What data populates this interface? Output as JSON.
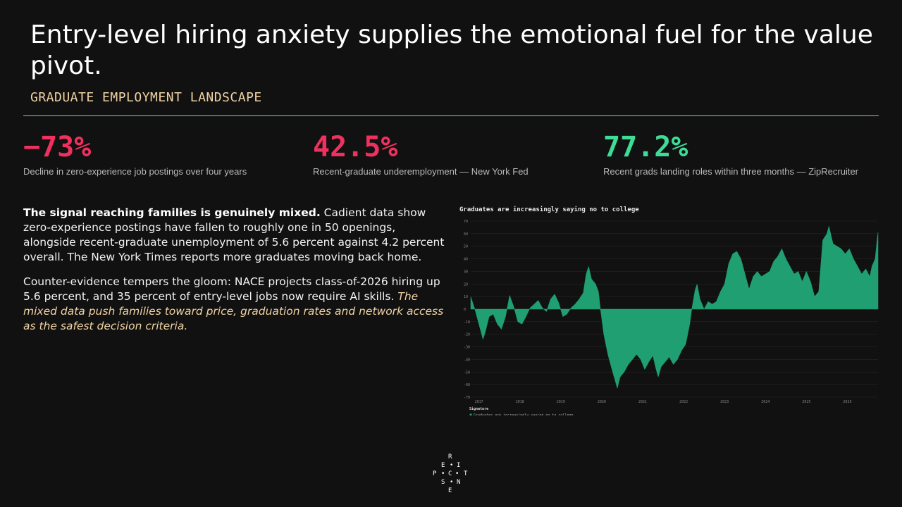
{
  "slide": {
    "title": "Entry-level hiring anxiety supplies the emotional fuel for the value pivot.",
    "section_label": "GRADUATE EMPLOYMENT LANDSCAPE"
  },
  "stats": [
    {
      "value": "−73%",
      "label": "Decline in zero-experience job postings over four years",
      "color": "#f0305e"
    },
    {
      "value": "42.5%",
      "label": "Recent-graduate underemployment — New York Fed",
      "color": "#f0305e"
    },
    {
      "value": "77.2%",
      "label": "Recent grads landing roles within three months — ZipRecruiter",
      "color": "#3ddc97"
    }
  ],
  "body": {
    "p1_lead": "The signal reaching families is genuinely mixed.",
    "p1_rest": " Cadient data show zero-experience postings have fallen to roughly one in 50 openings, alongside recent-graduate unemployment of 5.6 percent against 4.2 percent overall. The New York Times reports more graduates moving back home.",
    "p2_rest": "Counter-evidence tempers the gloom: NACE projects class-of-2026 hiring up 5.6 percent, and 35 percent of entry-level jobs now require AI skills. ",
    "p2_accent": "The mixed data push families toward price, graduation rates and network access as the safest decision criteria."
  },
  "logo": {
    "letters": [
      "R",
      "E",
      "I",
      "P",
      "C",
      "T",
      "S",
      "N",
      "E"
    ]
  },
  "chart_data": {
    "type": "area",
    "title": "Graduates are increasingly saying no to college",
    "xlabel": "",
    "ylabel": "",
    "ylim": [
      -70,
      70
    ],
    "yticks": [
      70,
      60,
      50,
      40,
      30,
      20,
      10,
      0,
      -10,
      -20,
      -30,
      -40,
      -50,
      -60,
      -70
    ],
    "xlim": [
      2016.8,
      2026.75
    ],
    "xticks": [
      "2017",
      "2018",
      "2019",
      "2020",
      "2021",
      "2022",
      "2023",
      "2024",
      "2025",
      "2026"
    ],
    "grid": true,
    "legend_title": "Signature",
    "legend_position": "bottom-left",
    "series": [
      {
        "name": "Graduates are increasingly saying no to college",
        "color": "#1f9f72",
        "points": [
          [
            2016.8,
            10
          ],
          [
            2016.9,
            0
          ],
          [
            2017.0,
            -12
          ],
          [
            2017.1,
            -24
          ],
          [
            2017.15,
            -19
          ],
          [
            2017.25,
            -6
          ],
          [
            2017.35,
            -4
          ],
          [
            2017.45,
            -12
          ],
          [
            2017.55,
            -16
          ],
          [
            2017.65,
            -6
          ],
          [
            2017.75,
            11
          ],
          [
            2017.85,
            2
          ],
          [
            2017.95,
            -10
          ],
          [
            2018.05,
            -12
          ],
          [
            2018.15,
            -6
          ],
          [
            2018.25,
            1
          ],
          [
            2018.35,
            4
          ],
          [
            2018.45,
            7
          ],
          [
            2018.55,
            1
          ],
          [
            2018.65,
            -2
          ],
          [
            2018.75,
            8
          ],
          [
            2018.85,
            12
          ],
          [
            2018.95,
            5
          ],
          [
            2019.05,
            -6
          ],
          [
            2019.15,
            -4
          ],
          [
            2019.25,
            1
          ],
          [
            2019.35,
            4
          ],
          [
            2019.45,
            8
          ],
          [
            2019.55,
            13
          ],
          [
            2019.62,
            28
          ],
          [
            2019.68,
            34
          ],
          [
            2019.75,
            24
          ],
          [
            2019.85,
            20
          ],
          [
            2019.92,
            14
          ],
          [
            2019.97,
            0
          ],
          [
            2020.05,
            -20
          ],
          [
            2020.15,
            -36
          ],
          [
            2020.25,
            -48
          ],
          [
            2020.32,
            -56
          ],
          [
            2020.38,
            -63
          ],
          [
            2020.45,
            -54
          ],
          [
            2020.55,
            -50
          ],
          [
            2020.65,
            -44
          ],
          [
            2020.75,
            -40
          ],
          [
            2020.85,
            -36
          ],
          [
            2020.95,
            -40
          ],
          [
            2021.05,
            -48
          ],
          [
            2021.15,
            -42
          ],
          [
            2021.25,
            -37
          ],
          [
            2021.32,
            -47
          ],
          [
            2021.38,
            -54
          ],
          [
            2021.45,
            -46
          ],
          [
            2021.55,
            -42
          ],
          [
            2021.65,
            -38
          ],
          [
            2021.75,
            -44
          ],
          [
            2021.85,
            -40
          ],
          [
            2021.95,
            -33
          ],
          [
            2022.05,
            -28
          ],
          [
            2022.15,
            -12
          ],
          [
            2022.2,
            0
          ],
          [
            2022.28,
            15
          ],
          [
            2022.33,
            20
          ],
          [
            2022.4,
            8
          ],
          [
            2022.5,
            0
          ],
          [
            2022.6,
            6
          ],
          [
            2022.7,
            4
          ],
          [
            2022.8,
            6
          ],
          [
            2022.9,
            14
          ],
          [
            2023.0,
            20
          ],
          [
            2023.1,
            36
          ],
          [
            2023.2,
            44
          ],
          [
            2023.3,
            46
          ],
          [
            2023.4,
            40
          ],
          [
            2023.5,
            28
          ],
          [
            2023.6,
            16
          ],
          [
            2023.7,
            26
          ],
          [
            2023.8,
            30
          ],
          [
            2023.9,
            26
          ],
          [
            2024.0,
            28
          ],
          [
            2024.1,
            30
          ],
          [
            2024.2,
            38
          ],
          [
            2024.3,
            42
          ],
          [
            2024.4,
            48
          ],
          [
            2024.5,
            40
          ],
          [
            2024.6,
            34
          ],
          [
            2024.7,
            28
          ],
          [
            2024.8,
            30
          ],
          [
            2024.9,
            22
          ],
          [
            2025.0,
            30
          ],
          [
            2025.1,
            22
          ],
          [
            2025.2,
            10
          ],
          [
            2025.3,
            14
          ],
          [
            2025.4,
            55
          ],
          [
            2025.5,
            60
          ],
          [
            2025.55,
            66
          ],
          [
            2025.65,
            52
          ],
          [
            2025.75,
            50
          ],
          [
            2025.85,
            48
          ],
          [
            2025.95,
            44
          ],
          [
            2026.05,
            48
          ],
          [
            2026.15,
            40
          ],
          [
            2026.25,
            34
          ],
          [
            2026.35,
            28
          ],
          [
            2026.45,
            32
          ],
          [
            2026.55,
            26
          ],
          [
            2026.6,
            34
          ],
          [
            2026.68,
            40
          ],
          [
            2026.73,
            56
          ],
          [
            2026.75,
            61
          ]
        ]
      }
    ]
  }
}
